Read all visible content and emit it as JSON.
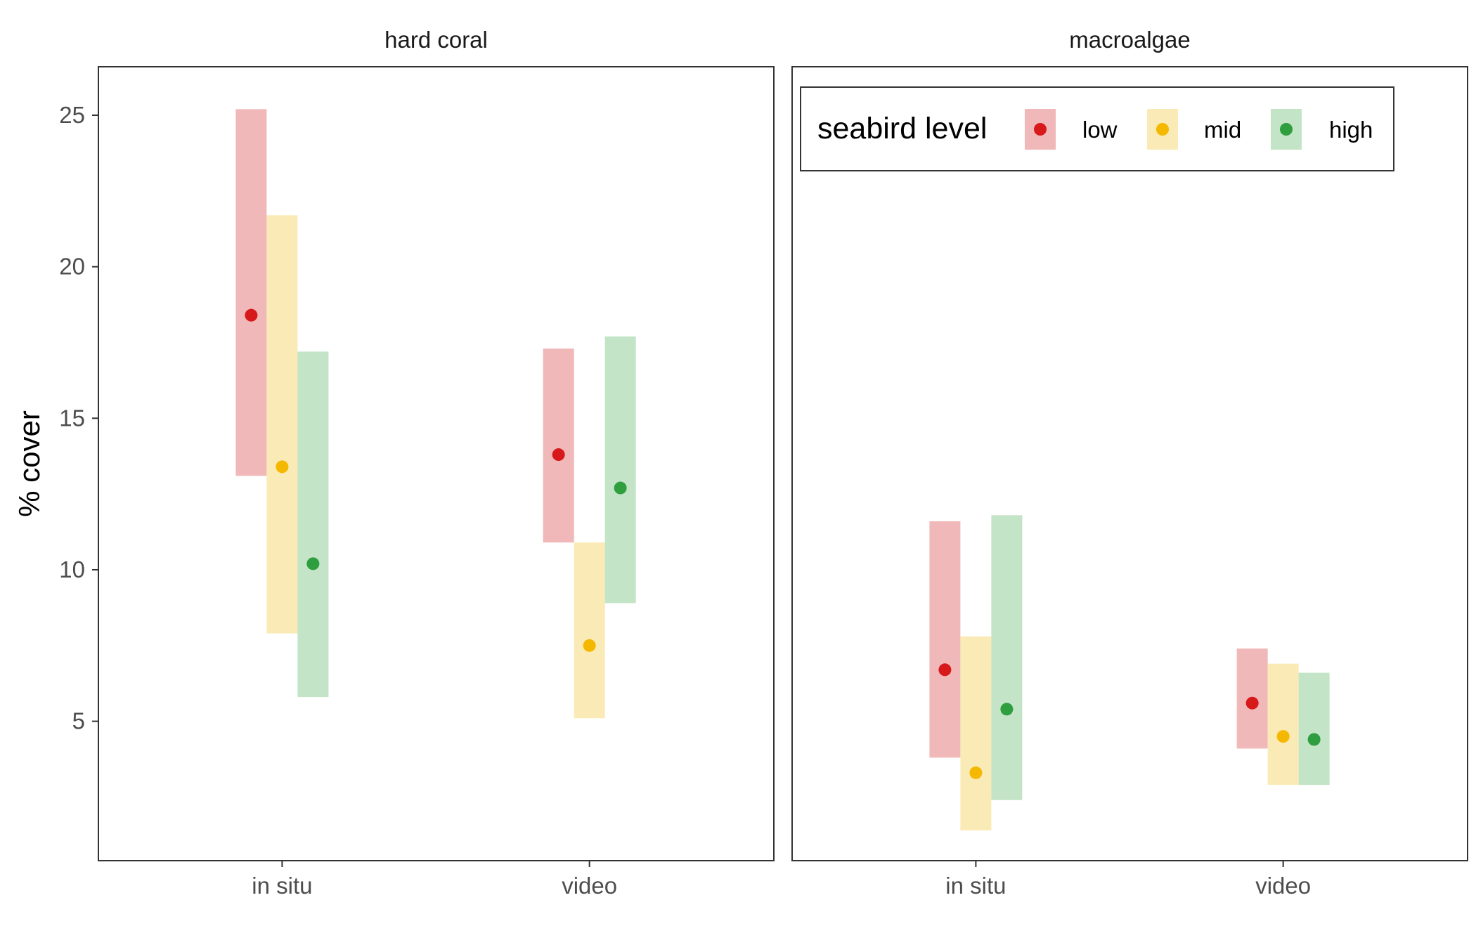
{
  "chart_data": {
    "type": "errorbar-point",
    "ylabel": "% cover",
    "ylim": [
      0.4,
      26.6
    ],
    "yticks": [
      5,
      10,
      15,
      20,
      25
    ],
    "categories": [
      "in situ",
      "video"
    ],
    "legend": {
      "title": "seabird level",
      "position": "top-right",
      "entries": [
        "low",
        "mid",
        "high"
      ]
    },
    "series_colors": {
      "low": "#d7191c",
      "mid": "#f5b800",
      "high": "#2e9e3f"
    },
    "band_colors": {
      "low": "#f0b8b8",
      "mid": "#faeab5",
      "high": "#c3e4c6"
    },
    "panels": [
      {
        "title": "hard coral",
        "data": {
          "in situ": {
            "low": {
              "mean": 18.4,
              "lower": 13.1,
              "upper": 25.2
            },
            "mid": {
              "mean": 13.4,
              "lower": 7.9,
              "upper": 21.7
            },
            "high": {
              "mean": 10.2,
              "lower": 5.8,
              "upper": 17.2
            }
          },
          "video": {
            "low": {
              "mean": 13.8,
              "lower": 10.9,
              "upper": 17.3
            },
            "mid": {
              "mean": 7.5,
              "lower": 5.1,
              "upper": 10.9
            },
            "high": {
              "mean": 12.7,
              "lower": 8.9,
              "upper": 17.7
            }
          }
        }
      },
      {
        "title": "macroalgae",
        "data": {
          "in situ": {
            "low": {
              "mean": 6.7,
              "lower": 3.8,
              "upper": 11.6
            },
            "mid": {
              "mean": 3.3,
              "lower": 1.4,
              "upper": 7.8
            },
            "high": {
              "mean": 5.4,
              "lower": 2.4,
              "upper": 11.8
            }
          },
          "video": {
            "low": {
              "mean": 5.6,
              "lower": 4.1,
              "upper": 7.4
            },
            "mid": {
              "mean": 4.5,
              "lower": 2.9,
              "upper": 6.9
            },
            "high": {
              "mean": 4.4,
              "lower": 2.9,
              "upper": 6.6
            }
          }
        }
      }
    ]
  }
}
